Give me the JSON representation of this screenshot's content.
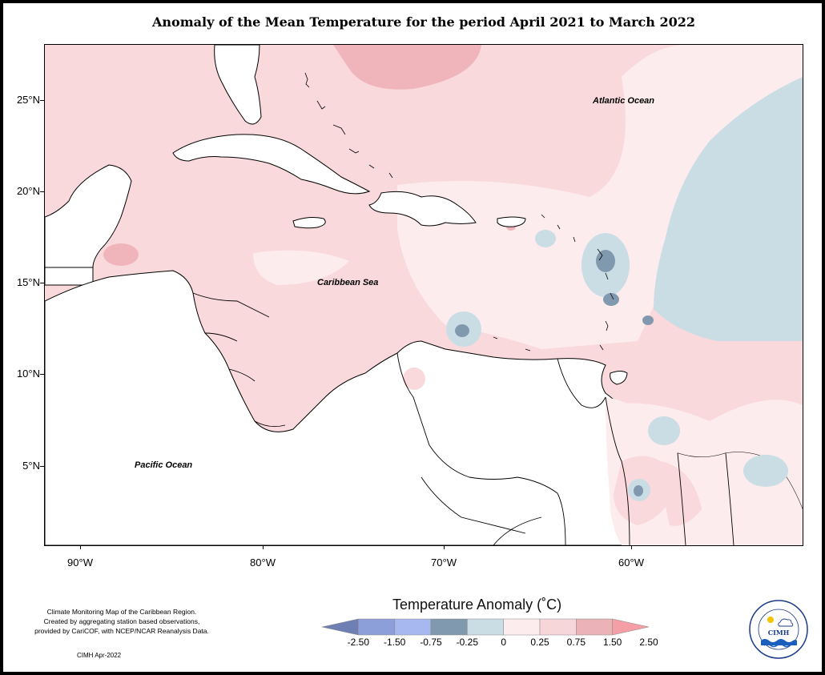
{
  "title": "Anomaly of the Mean Temperature for the period April 2021 to March 2022",
  "y_axis_labels": [
    "25°N",
    "20°N",
    "15°N",
    "10°N",
    "5°N"
  ],
  "x_axis_labels": [
    "90°W",
    "80°W",
    "70°W",
    "60°W"
  ],
  "ocean_labels": {
    "atlantic": "Atlantic Ocean",
    "caribbean": "Caribbean Sea",
    "pacific": "Pacific Ocean"
  },
  "credit": {
    "line1": "Climate Monitoring Map of the Caribbean Region.",
    "line2": "Created by aggregating station based observations,",
    "line3": "provided by CariCOF, with NCEP/NCAR Reanalysis Data.",
    "date": "CIMH Apr-2022"
  },
  "legend": {
    "title": "Temperature Anomaly (˚C)",
    "labels": [
      "-2.50",
      "-1.50",
      "-0.75",
      "-0.25",
      "0",
      "0.25",
      "0.75",
      "1.50",
      "2.50"
    ],
    "colors": [
      "#6d7fb3",
      "#8c9fd8",
      "#a7b8f0",
      "#8199ae",
      "#cadde4",
      "#fdecee",
      "#f7d6da",
      "#ebb3b8",
      "#f59ea5"
    ]
  },
  "logo": {
    "name": "CIMH",
    "ring_text": "Caribbean Institute for Meteorology and Hydrology"
  },
  "map_colors": {
    "base_pink": "#f9d9dc",
    "light_pink": "#fdecee",
    "deep_pink": "#efb5ba",
    "light_blue": "#cadde4",
    "mid_blue": "#8199ae",
    "land": "#ffffff"
  }
}
